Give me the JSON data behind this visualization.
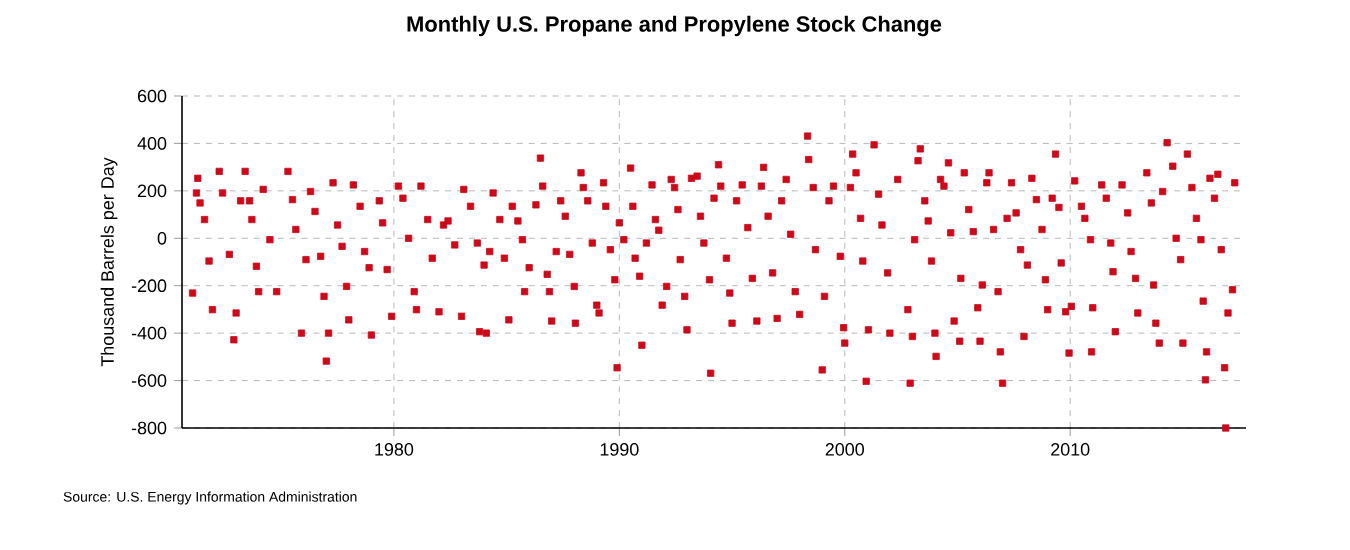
{
  "chart_data": {
    "type": "scatter",
    "title": "Monthly U.S. Propane and Propylene Stock Change",
    "ylabel": "Thousand Barrels per Day",
    "annotations": [
      "Source: U.S. Energy Information Administration"
    ],
    "xlim": [
      1970.6,
      2017.8
    ],
    "ylim": [
      -800,
      600
    ],
    "xticks": [
      1980,
      1990,
      2000,
      2010
    ],
    "yticks": [
      -800,
      -600,
      -400,
      -200,
      0,
      200,
      400,
      600
    ],
    "grid": true,
    "marker": "square",
    "series": [
      {
        "color": "#cc0a1a",
        "x": [
          1971.07,
          1971.24,
          1971.3,
          1971.4,
          1971.6,
          1971.8,
          1971.95,
          1972.25,
          1972.4,
          1972.7,
          1972.9,
          1973.0,
          1973.2,
          1973.4,
          1973.6,
          1973.7,
          1973.9,
          1974.0,
          1974.2,
          1974.5,
          1974.8,
          1975.3,
          1975.5,
          1975.65,
          1975.9,
          1976.1,
          1976.3,
          1976.5,
          1976.75,
          1976.9,
          1977.0,
          1977.1,
          1977.3,
          1977.5,
          1977.7,
          1977.9,
          1978.0,
          1978.2,
          1978.5,
          1978.7,
          1978.9,
          1979.0,
          1979.35,
          1979.5,
          1979.7,
          1979.9,
          1980.2,
          1980.4,
          1980.65,
          1980.9,
          1981.0,
          1981.2,
          1981.5,
          1981.7,
          1982.0,
          1982.2,
          1982.4,
          1982.7,
          1983.0,
          1983.1,
          1983.4,
          1983.7,
          1983.8,
          1984.0,
          1984.1,
          1984.25,
          1984.4,
          1984.7,
          1984.9,
          1985.1,
          1985.25,
          1985.5,
          1985.7,
          1985.8,
          1986.0,
          1986.3,
          1986.5,
          1986.6,
          1986.8,
          1986.9,
          1987.0,
          1987.2,
          1987.4,
          1987.6,
          1987.8,
          1988.0,
          1988.05,
          1988.3,
          1988.4,
          1988.6,
          1988.8,
          1989.0,
          1989.1,
          1989.3,
          1989.4,
          1989.6,
          1989.8,
          1989.9,
          1990.0,
          1990.2,
          1990.5,
          1990.6,
          1990.7,
          1990.9,
          1991.0,
          1991.2,
          1991.45,
          1991.6,
          1991.75,
          1991.9,
          1992.1,
          1992.3,
          1992.45,
          1992.6,
          1992.7,
          1992.9,
          1993.0,
          1993.2,
          1993.45,
          1993.6,
          1993.75,
          1994.0,
          1994.05,
          1994.2,
          1994.4,
          1994.5,
          1994.75,
          1994.9,
          1995.0,
          1995.2,
          1995.45,
          1995.7,
          1995.9,
          1996.1,
          1996.3,
          1996.4,
          1996.6,
          1996.8,
          1997.0,
          1997.2,
          1997.4,
          1997.6,
          1997.8,
          1998.0,
          1998.35,
          1998.4,
          1998.6,
          1998.7,
          1999.0,
          1999.1,
          1999.3,
          1999.5,
          1999.8,
          1999.95,
          2000.0,
          2000.25,
          2000.35,
          2000.5,
          2000.7,
          2000.8,
          2000.95,
          2001.05,
          2001.3,
          2001.5,
          2001.65,
          2001.9,
          2002.0,
          2002.35,
          2002.8,
          2002.9,
          2003.0,
          2003.1,
          2003.25,
          2003.35,
          2003.55,
          2003.7,
          2003.85,
          2004.0,
          2004.05,
          2004.25,
          2004.4,
          2004.6,
          2004.7,
          2004.85,
          2005.1,
          2005.15,
          2005.3,
          2005.5,
          2005.7,
          2005.9,
          2006.0,
          2006.1,
          2006.3,
          2006.4,
          2006.6,
          2006.8,
          2006.9,
          2007.0,
          2007.2,
          2007.4,
          2007.6,
          2007.8,
          2007.95,
          2008.1,
          2008.3,
          2008.5,
          2008.75,
          2008.9,
          2009.0,
          2009.2,
          2009.35,
          2009.5,
          2009.6,
          2009.8,
          2009.95,
          2010.05,
          2010.2,
          2010.5,
          2010.65,
          2010.9,
          2010.95,
          2011.0,
          2011.4,
          2011.6,
          2011.8,
          2011.9,
          2012.0,
          2012.3,
          2012.55,
          2012.7,
          2012.9,
          2013.0,
          2013.4,
          2013.6,
          2013.7,
          2013.8,
          2013.95,
          2014.1,
          2014.3,
          2014.55,
          2014.7,
          2014.9,
          2015.0,
          2015.2,
          2015.4,
          2015.6,
          2015.8,
          2015.9,
          2016.0,
          2016.05,
          2016.2,
          2016.4,
          2016.55,
          2016.7,
          2016.85,
          2016.9,
          2017.0,
          2017.2,
          2017.3
        ],
        "values": [
          -231,
          191,
          253,
          149,
          79,
          -96,
          -301,
          282,
          191,
          -68,
          -428,
          -315,
          158,
          282,
          158,
          79,
          -118,
          -225,
          206,
          -6,
          -225,
          282,
          163,
          37,
          -400,
          -90,
          197,
          113,
          -76,
          -245,
          -518,
          -400,
          234,
          56,
          -34,
          -203,
          -344,
          225,
          135,
          -56,
          -124,
          -408,
          158,
          65,
          -132,
          -329,
          220,
          169,
          0,
          -225,
          -301,
          220,
          79,
          -84,
          -310,
          56,
          73,
          -28,
          -329,
          206,
          135,
          -20,
          -394,
          -113,
          -400,
          -56,
          191,
          79,
          -84,
          -344,
          135,
          73,
          -6,
          -225,
          -124,
          141,
          338,
          220,
          -152,
          -225,
          -349,
          -56,
          158,
          93,
          -68,
          -203,
          -358,
          276,
          214,
          158,
          -20,
          -282,
          -315,
          234,
          135,
          -48,
          -175,
          -546,
          65,
          -6,
          296,
          135,
          -84,
          -160,
          -451,
          -20,
          225,
          79,
          34,
          -282,
          -203,
          248,
          214,
          121,
          -90,
          -245,
          -386,
          253,
          262,
          93,
          -20,
          -175,
          -569,
          169,
          310,
          220,
          -84,
          -231,
          -358,
          158,
          225,
          45,
          -169,
          -349,
          220,
          299,
          93,
          -146,
          -338,
          158,
          248,
          17,
          -225,
          -321,
          431,
          332,
          214,
          -48,
          -555,
          -245,
          158,
          220,
          -76,
          -377,
          -442,
          214,
          355,
          276,
          84,
          -96,
          -603,
          -386,
          394,
          186,
          56,
          -146,
          -400,
          248,
          -301,
          -611,
          -414,
          -6,
          327,
          377,
          158,
          73,
          -96,
          -400,
          -498,
          248,
          220,
          318,
          23,
          -349,
          -434,
          -169,
          276,
          121,
          28,
          -293,
          -434,
          -197,
          234,
          276,
          37,
          -225,
          -479,
          -611,
          84,
          234,
          107,
          -48,
          -414,
          -113,
          253,
          163,
          37,
          -175,
          -301,
          169,
          355,
          130,
          -104,
          -310,
          -484,
          -287,
          242,
          135,
          84,
          -6,
          -479,
          -293,
          225,
          169,
          -20,
          -141,
          -394,
          225,
          107,
          -56,
          -169,
          -315,
          276,
          149,
          -197,
          -358,
          -442,
          197,
          403,
          304,
          0,
          -90,
          -442,
          355,
          214,
          84,
          -6,
          -265,
          -597,
          -479,
          253,
          169,
          270,
          -48,
          -546,
          -800,
          -315,
          -217,
          234
        ]
      }
    ]
  }
}
